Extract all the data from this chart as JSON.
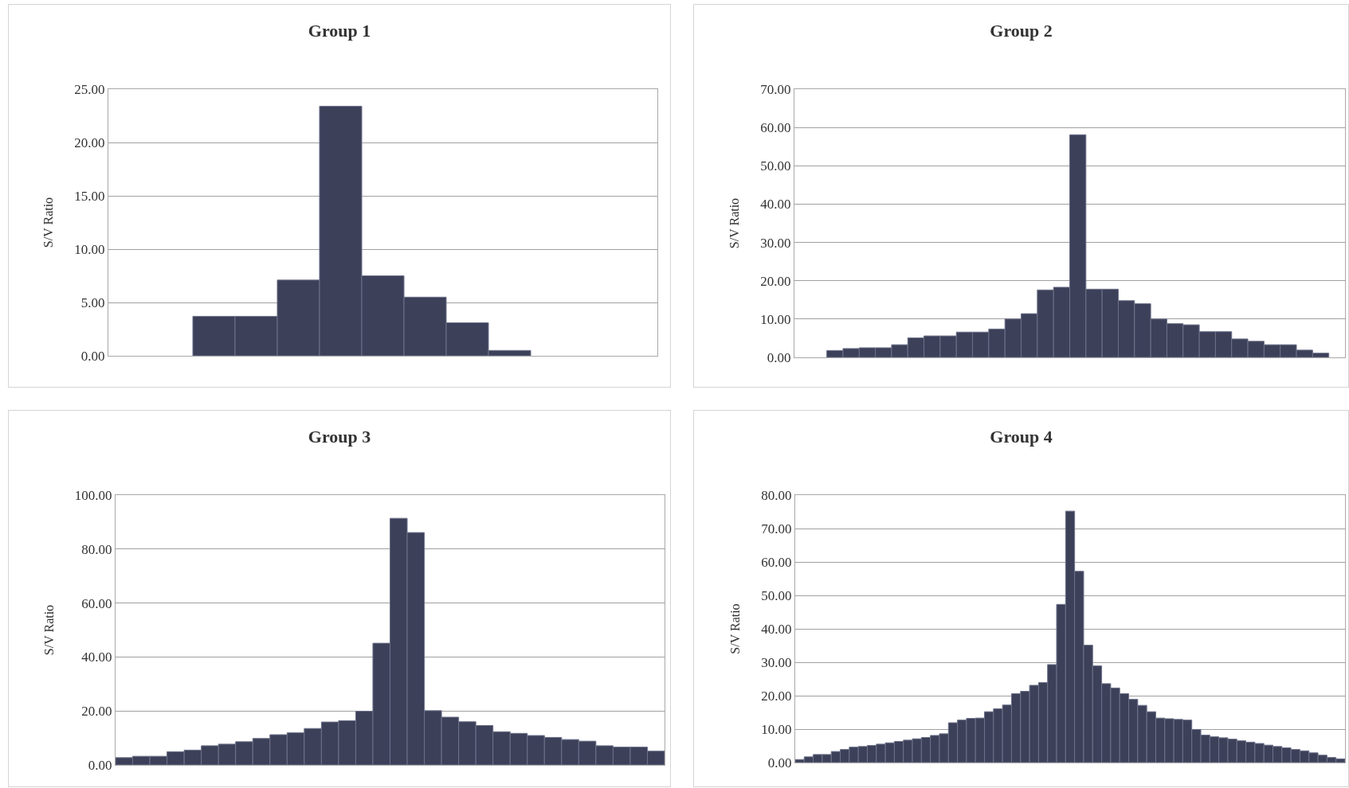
{
  "chart_data": [
    {
      "type": "bar",
      "title": "Group 1",
      "ylabel": "S/V Ratio",
      "color": "#3c4059",
      "grid": "y",
      "categories": [
        null,
        null,
        null,
        null,
        null,
        null,
        null,
        null,
        null,
        null,
        null,
        null,
        null
      ],
      "values": [
        0,
        0,
        3.7,
        3.7,
        7.1,
        23.4,
        7.5,
        5.5,
        3.1,
        0.5,
        0,
        0,
        0
      ],
      "ylim": [
        0,
        25
      ],
      "yticks": [
        {
          "value": 0,
          "label": "0.00"
        },
        {
          "value": 5,
          "label": "5.00"
        },
        {
          "value": 10,
          "label": "10.00"
        },
        {
          "value": 15,
          "label": "15.00"
        },
        {
          "value": 20,
          "label": "20.00"
        },
        {
          "value": 25,
          "label": "25.00"
        }
      ]
    },
    {
      "type": "bar",
      "title": "Group 2",
      "ylabel": "S/V Ratio",
      "color": "#3c4059",
      "grid": "y",
      "categories": [
        null,
        null,
        null,
        null,
        null,
        null,
        null,
        null,
        null,
        null,
        null,
        null,
        null,
        null,
        null,
        null,
        null,
        null,
        null,
        null,
        null,
        null,
        null,
        null,
        null,
        null,
        null,
        null,
        null,
        null,
        null,
        null,
        null,
        null
      ],
      "values": [
        0,
        0,
        1.8,
        2.3,
        2.5,
        2.5,
        3.3,
        5.1,
        5.6,
        5.6,
        6.6,
        6.6,
        7.4,
        10.0,
        11.4,
        17.6,
        18.3,
        58.1,
        17.8,
        17.8,
        14.8,
        14.0,
        10.0,
        8.8,
        8.5,
        6.7,
        6.7,
        4.8,
        4.2,
        3.3,
        3.3,
        1.9,
        1.1,
        0
      ],
      "ylim": [
        0,
        70
      ],
      "yticks": [
        {
          "value": 0,
          "label": "0.00"
        },
        {
          "value": 10,
          "label": "10.00"
        },
        {
          "value": 20,
          "label": "20.00"
        },
        {
          "value": 30,
          "label": "30.00"
        },
        {
          "value": 40,
          "label": "40.00"
        },
        {
          "value": 50,
          "label": "50.00"
        },
        {
          "value": 60,
          "label": "60.00"
        },
        {
          "value": 70,
          "label": "70.00"
        }
      ]
    },
    {
      "type": "bar",
      "title": "Group 3",
      "ylabel": "S/V Ratio",
      "color": "#3c4059",
      "grid": "y",
      "categories": [
        null,
        null,
        null,
        null,
        null,
        null,
        null,
        null,
        null,
        null,
        null,
        null,
        null,
        null,
        null,
        null,
        null,
        null,
        null,
        null,
        null,
        null,
        null,
        null,
        null,
        null,
        null,
        null,
        null,
        null,
        null,
        null
      ],
      "values": [
        2.7,
        3.2,
        3.2,
        4.9,
        5.5,
        7.1,
        7.7,
        8.6,
        9.8,
        11.2,
        11.9,
        13.5,
        15.9,
        16.4,
        19.9,
        45.1,
        91.4,
        86.1,
        20.1,
        17.7,
        16.0,
        14.6,
        12.3,
        11.7,
        10.9,
        10.2,
        9.4,
        8.8,
        7.1,
        6.6,
        6.6,
        5.1
      ],
      "ylim": [
        0,
        100
      ],
      "yticks": [
        {
          "value": 0,
          "label": "0.00"
        },
        {
          "value": 20,
          "label": "20.00"
        },
        {
          "value": 40,
          "label": "40.00"
        },
        {
          "value": 60,
          "label": "60.00"
        },
        {
          "value": 80,
          "label": "80.00"
        },
        {
          "value": 100,
          "label": "100.00"
        }
      ]
    },
    {
      "type": "bar",
      "title": "Group 4",
      "ylabel": "S/V Ratio",
      "color": "#3c4059",
      "grid": "y",
      "categories": [
        null,
        null,
        null,
        null,
        null,
        null,
        null,
        null,
        null,
        null,
        null,
        null,
        null,
        null,
        null,
        null,
        null,
        null,
        null,
        null,
        null,
        null,
        null,
        null,
        null,
        null,
        null,
        null,
        null,
        null,
        null,
        null,
        null,
        null,
        null,
        null,
        null,
        null,
        null,
        null,
        null,
        null,
        null,
        null,
        null,
        null,
        null,
        null,
        null,
        null,
        null,
        null,
        null,
        null,
        null,
        null,
        null,
        null,
        null,
        null,
        null
      ],
      "values": [
        0.9,
        1.7,
        2.4,
        2.4,
        3.3,
        3.9,
        4.6,
        4.8,
        5.1,
        5.5,
        5.9,
        6.3,
        6.7,
        7.1,
        7.5,
        8.1,
        8.6,
        11.9,
        12.7,
        13.2,
        13.3,
        15.2,
        16.1,
        17.2,
        20.6,
        21.3,
        23.1,
        23.9,
        29.3,
        47.3,
        75.2,
        57.2,
        35.1,
        28.9,
        23.6,
        22.3,
        20.6,
        18.9,
        17.1,
        15.2,
        13.3,
        13.1,
        12.9,
        12.7,
        9.9,
        8.2,
        7.7,
        7.4,
        7.0,
        6.5,
        6.1,
        5.7,
        5.2,
        4.8,
        4.4,
        3.9,
        3.5,
        2.9,
        2.2,
        1.5,
        1.1
      ],
      "ylim": [
        0,
        80
      ],
      "yticks": [
        {
          "value": 0,
          "label": "0.00"
        },
        {
          "value": 10,
          "label": "10.00"
        },
        {
          "value": 20,
          "label": "20.00"
        },
        {
          "value": 30,
          "label": "30.00"
        },
        {
          "value": 40,
          "label": "40.00"
        },
        {
          "value": 50,
          "label": "50.00"
        },
        {
          "value": 60,
          "label": "60.00"
        },
        {
          "value": 70,
          "label": "70.00"
        },
        {
          "value": 80,
          "label": "80.00"
        }
      ]
    }
  ]
}
